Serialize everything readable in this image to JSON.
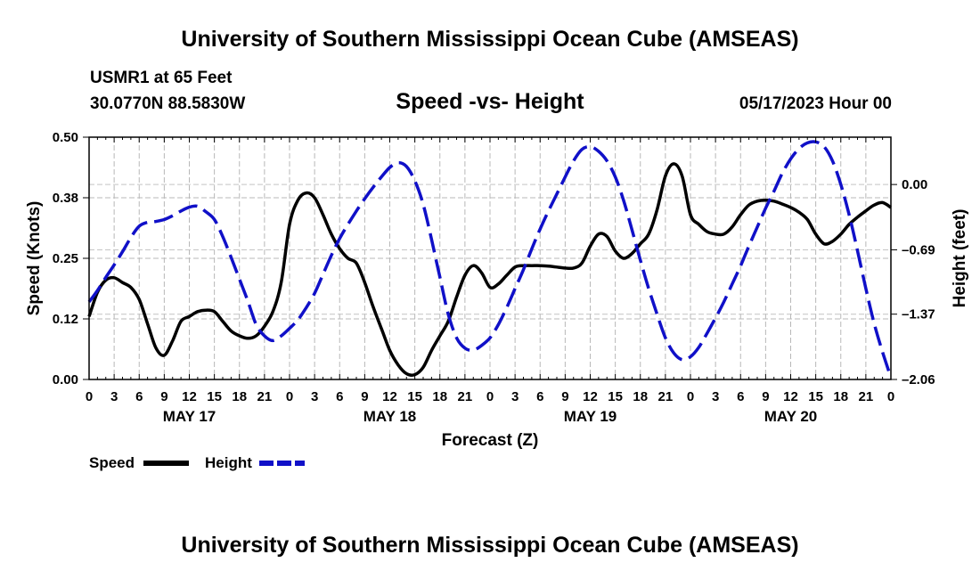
{
  "header": {
    "title": "University of Southern Mississippi Ocean Cube (AMSEAS)",
    "station": "USMR1 at 65 Feet",
    "coords": "30.0770N  88.5830W",
    "subtitle": "Speed -vs- Height",
    "date": "05/17/2023 Hour 00"
  },
  "footer": {
    "title": "University of Southern Mississippi Ocean Cube (AMSEAS)"
  },
  "chart_data": {
    "type": "line",
    "title": "Speed -vs- Height",
    "xlabel": "Forecast (Z)",
    "ylabel": "Speed (Knots)",
    "y2label": "Height (feet)",
    "xlim": [
      0,
      96
    ],
    "ylim": [
      0,
      0.5
    ],
    "y2lim": [
      -2.06,
      0.5
    ],
    "x_tick_labels": [
      "0",
      "3",
      "6",
      "9",
      "12",
      "15",
      "18",
      "21",
      "0",
      "3",
      "6",
      "9",
      "12",
      "15",
      "18",
      "21",
      "0",
      "3",
      "6",
      "9",
      "12",
      "15",
      "18",
      "21",
      "0",
      "3",
      "6",
      "9",
      "12",
      "15",
      "18",
      "21",
      "0"
    ],
    "day_labels": [
      {
        "hour": 12,
        "label": "MAY 17"
      },
      {
        "hour": 36,
        "label": "MAY 18"
      },
      {
        "hour": 60,
        "label": "MAY 19"
      },
      {
        "hour": 84,
        "label": "MAY 20"
      }
    ],
    "y_ticks": [
      0,
      0.125,
      0.25,
      0.375,
      0.5
    ],
    "y_tick_labels": [
      "0.00",
      "0.12",
      "0.25",
      "0.38",
      "0.50"
    ],
    "y2_ticks": [
      -2.06,
      -1.37,
      -0.69,
      0.0
    ],
    "y2_tick_labels": [
      "–2.06",
      "–1.37",
      "–0.69",
      "0.00"
    ],
    "grid": true,
    "legend_position": "bottom-left",
    "series": [
      {
        "name": "Speed",
        "axis": "left",
        "color": "#000000",
        "dash": "solid",
        "x": [
          0,
          1,
          2,
          3,
          4,
          5,
          6,
          7,
          8,
          9,
          10,
          11,
          12,
          13,
          14,
          15,
          16,
          17,
          18,
          19,
          20,
          21,
          22,
          23,
          24,
          25,
          26,
          27,
          28,
          29,
          30,
          31,
          32,
          33,
          34,
          35,
          36,
          37,
          38,
          39,
          40,
          41,
          42,
          43,
          44,
          45,
          46,
          47,
          48,
          49,
          50,
          51,
          52,
          53,
          54,
          55,
          56,
          57,
          58,
          59,
          60,
          61,
          62,
          63,
          64,
          65,
          66,
          67,
          68,
          69,
          70,
          71,
          72,
          73,
          74,
          75,
          76,
          77,
          78,
          79,
          80,
          81,
          82,
          83,
          84,
          85,
          86,
          87,
          88,
          89,
          90,
          91,
          92,
          93,
          94,
          95,
          96
        ],
        "values": [
          0.13,
          0.18,
          0.205,
          0.21,
          0.2,
          0.19,
          0.165,
          0.115,
          0.065,
          0.05,
          0.08,
          0.12,
          0.13,
          0.14,
          0.143,
          0.14,
          0.12,
          0.1,
          0.09,
          0.085,
          0.09,
          0.11,
          0.14,
          0.2,
          0.32,
          0.37,
          0.385,
          0.375,
          0.34,
          0.3,
          0.27,
          0.25,
          0.24,
          0.2,
          0.15,
          0.105,
          0.06,
          0.03,
          0.012,
          0.01,
          0.025,
          0.06,
          0.09,
          0.12,
          0.17,
          0.215,
          0.235,
          0.22,
          0.19,
          0.197,
          0.215,
          0.232,
          0.235,
          0.235,
          0.235,
          0.234,
          0.232,
          0.23,
          0.23,
          0.24,
          0.275,
          0.3,
          0.295,
          0.265,
          0.25,
          0.26,
          0.28,
          0.3,
          0.35,
          0.42,
          0.445,
          0.42,
          0.34,
          0.32,
          0.305,
          0.3,
          0.3,
          0.315,
          0.34,
          0.36,
          0.368,
          0.37,
          0.368,
          0.362,
          0.355,
          0.345,
          0.33,
          0.3,
          0.28,
          0.285,
          0.3,
          0.32,
          0.335,
          0.348,
          0.36,
          0.365,
          0.355
        ]
      },
      {
        "name": "Height",
        "axis": "right",
        "color": "#1010c8",
        "dash": "dashed",
        "x": [
          0,
          1,
          2,
          3,
          4,
          5,
          6,
          7,
          8,
          9,
          10,
          11,
          12,
          13,
          14,
          15,
          16,
          17,
          18,
          19,
          20,
          21,
          22,
          23,
          24,
          25,
          26,
          27,
          28,
          29,
          30,
          31,
          32,
          33,
          34,
          35,
          36,
          37,
          38,
          39,
          40,
          41,
          42,
          43,
          44,
          45,
          46,
          47,
          48,
          49,
          50,
          51,
          52,
          53,
          54,
          55,
          56,
          57,
          58,
          59,
          60,
          61,
          62,
          63,
          64,
          65,
          66,
          67,
          68,
          69,
          70,
          71,
          72,
          73,
          74,
          75,
          76,
          77,
          78,
          79,
          80,
          81,
          82,
          83,
          84,
          85,
          86,
          87,
          88,
          89,
          90,
          91,
          92,
          93,
          94,
          95,
          96
        ],
        "values": [
          -1.24,
          -1.12,
          -0.98,
          -0.85,
          -0.71,
          -0.56,
          -0.44,
          -0.4,
          -0.39,
          -0.37,
          -0.33,
          -0.28,
          -0.24,
          -0.23,
          -0.29,
          -0.37,
          -0.55,
          -0.77,
          -1.0,
          -1.23,
          -1.48,
          -1.6,
          -1.65,
          -1.6,
          -1.52,
          -1.43,
          -1.3,
          -1.15,
          -0.95,
          -0.75,
          -0.57,
          -0.42,
          -0.28,
          -0.15,
          -0.03,
          0.08,
          0.18,
          0.23,
          0.19,
          0.04,
          -0.21,
          -0.58,
          -0.98,
          -1.37,
          -1.62,
          -1.73,
          -1.75,
          -1.7,
          -1.62,
          -1.48,
          -1.3,
          -1.1,
          -0.9,
          -0.68,
          -0.47,
          -0.28,
          -0.1,
          0.08,
          0.25,
          0.37,
          0.4,
          0.35,
          0.25,
          0.08,
          -0.17,
          -0.48,
          -0.8,
          -1.1,
          -1.37,
          -1.62,
          -1.78,
          -1.85,
          -1.82,
          -1.72,
          -1.57,
          -1.41,
          -1.24,
          -1.05,
          -0.86,
          -0.65,
          -0.45,
          -0.25,
          -0.07,
          0.12,
          0.27,
          0.38,
          0.44,
          0.45,
          0.4,
          0.25,
          0.0,
          -0.32,
          -0.7,
          -1.1,
          -1.47,
          -1.77,
          -2.04
        ]
      }
    ]
  },
  "legend": {
    "speed_label": "Speed",
    "height_label": "Height"
  }
}
